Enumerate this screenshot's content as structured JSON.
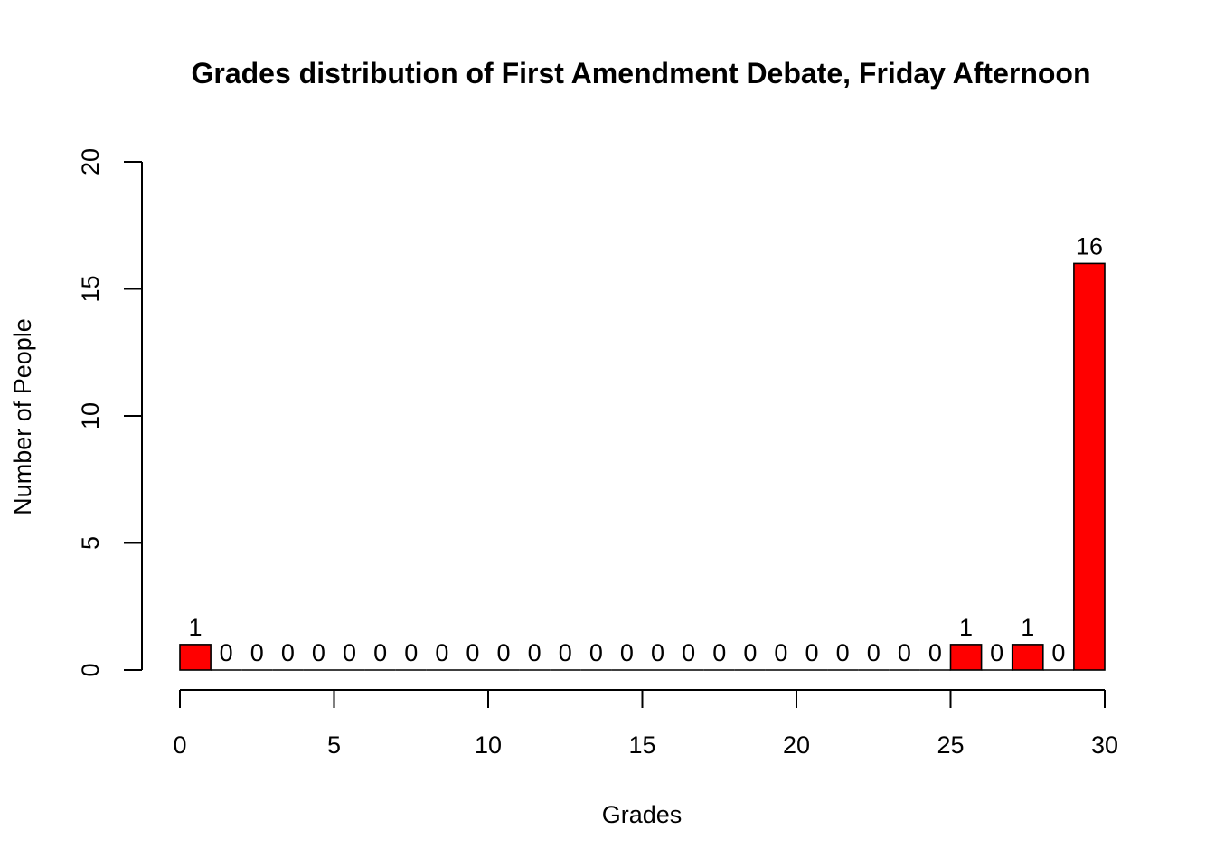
{
  "chart_data": {
    "type": "bar",
    "title": "Grades distribution of First Amendment Debate, Friday Afternoon",
    "xlabel": "Grades",
    "ylabel": "Number of People",
    "x_ticks": [
      0,
      5,
      10,
      15,
      20,
      25,
      30
    ],
    "y_ticks": [
      0,
      5,
      10,
      15,
      20
    ],
    "xlim": [
      0,
      30
    ],
    "ylim": [
      0,
      20
    ],
    "bar_color": "#ff0000",
    "bins": [
      {
        "from": 0,
        "to": 1,
        "value": 1
      },
      {
        "from": 1,
        "to": 2,
        "value": 0
      },
      {
        "from": 2,
        "to": 3,
        "value": 0
      },
      {
        "from": 3,
        "to": 4,
        "value": 0
      },
      {
        "from": 4,
        "to": 5,
        "value": 0
      },
      {
        "from": 5,
        "to": 6,
        "value": 0
      },
      {
        "from": 6,
        "to": 7,
        "value": 0
      },
      {
        "from": 7,
        "to": 8,
        "value": 0
      },
      {
        "from": 8,
        "to": 9,
        "value": 0
      },
      {
        "from": 9,
        "to": 10,
        "value": 0
      },
      {
        "from": 10,
        "to": 11,
        "value": 0
      },
      {
        "from": 11,
        "to": 12,
        "value": 0
      },
      {
        "from": 12,
        "to": 13,
        "value": 0
      },
      {
        "from": 13,
        "to": 14,
        "value": 0
      },
      {
        "from": 14,
        "to": 15,
        "value": 0
      },
      {
        "from": 15,
        "to": 16,
        "value": 0
      },
      {
        "from": 16,
        "to": 17,
        "value": 0
      },
      {
        "from": 17,
        "to": 18,
        "value": 0
      },
      {
        "from": 18,
        "to": 19,
        "value": 0
      },
      {
        "from": 19,
        "to": 20,
        "value": 0
      },
      {
        "from": 20,
        "to": 21,
        "value": 0
      },
      {
        "from": 21,
        "to": 22,
        "value": 0
      },
      {
        "from": 22,
        "to": 23,
        "value": 0
      },
      {
        "from": 23,
        "to": 24,
        "value": 0
      },
      {
        "from": 24,
        "to": 25,
        "value": 0
      },
      {
        "from": 25,
        "to": 26,
        "value": 1
      },
      {
        "from": 26,
        "to": 27,
        "value": 0
      },
      {
        "from": 27,
        "to": 28,
        "value": 1
      },
      {
        "from": 28,
        "to": 29,
        "value": 0
      },
      {
        "from": 29,
        "to": 30,
        "value": 16
      }
    ]
  }
}
